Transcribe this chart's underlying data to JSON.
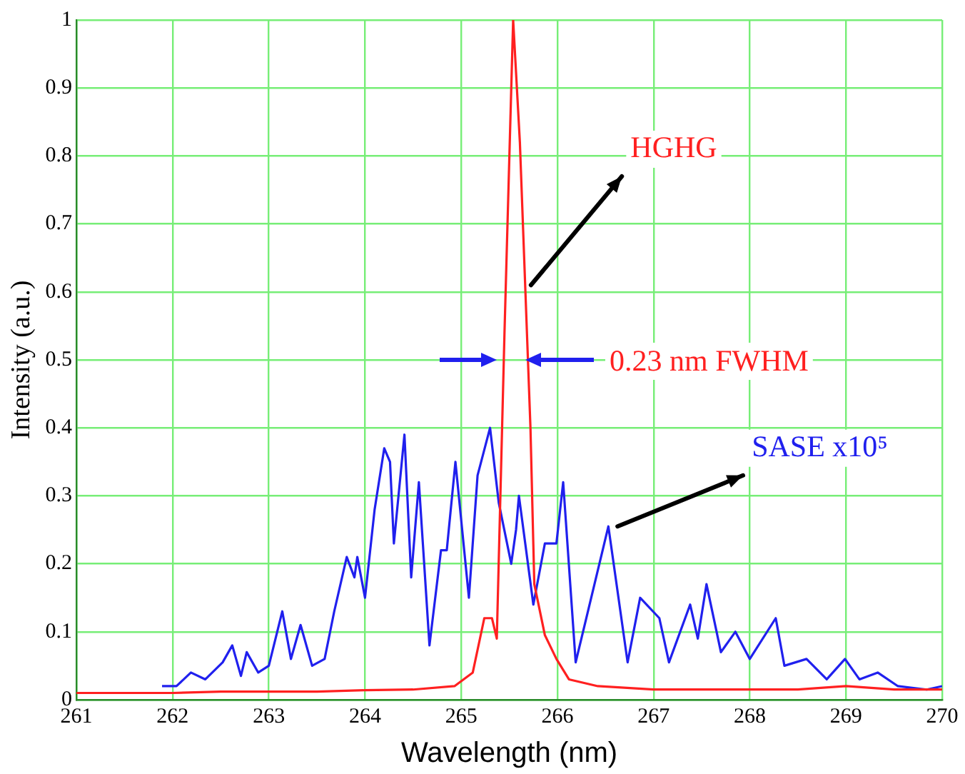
{
  "chart_data": {
    "type": "line",
    "xlabel": "Wavelength (nm)",
    "ylabel": "Intensity (a.u.)",
    "xlim": [
      261,
      270
    ],
    "xticks": [
      261,
      262,
      263,
      264,
      265,
      266,
      267,
      268,
      269,
      270
    ],
    "ylim": [
      0,
      1
    ],
    "yticks": [
      0,
      0.1,
      0.2,
      0.3,
      0.4,
      0.5,
      0.6,
      0.7,
      0.8,
      0.9,
      1
    ],
    "grid": true,
    "legend": false,
    "marker": "none",
    "line_style": "solid",
    "annotations": [
      "0.23 nm FWHM"
    ],
    "series": [
      {
        "name": "HGHG",
        "color": "#ff2020",
        "x": [
          261,
          261.5,
          262,
          262.5,
          263,
          263.5,
          264,
          264.5,
          264.93,
          265.12,
          265.24,
          265.32,
          265.37,
          265.45,
          265.54,
          265.61,
          265.72,
          265.76,
          265.87,
          265.99,
          266.12,
          266.42,
          267,
          267.5,
          268,
          268.5,
          269,
          269.5,
          270
        ],
        "values": [
          0.01,
          0.01,
          0.01,
          0.012,
          0.012,
          0.012,
          0.014,
          0.015,
          0.02,
          0.04,
          0.12,
          0.12,
          0.09,
          0.54,
          1.0,
          0.82,
          0.4,
          0.17,
          0.095,
          0.06,
          0.03,
          0.02,
          0.015,
          0.015,
          0.015,
          0.015,
          0.02,
          0.015,
          0.015
        ]
      },
      {
        "name": "SASE x10⁵",
        "color": "#2020ee",
        "x": [
          261.89,
          262.04,
          262.19,
          262.34,
          262.52,
          262.62,
          262.71,
          262.77,
          262.89,
          263.0,
          263.14,
          263.23,
          263.33,
          263.45,
          263.58,
          263.68,
          263.81,
          263.89,
          263.92,
          264.0,
          264.1,
          264.2,
          264.26,
          264.3,
          264.41,
          264.48,
          264.56,
          264.67,
          264.79,
          264.85,
          264.94,
          265.08,
          265.17,
          265.3,
          265.39,
          265.52,
          265.57,
          265.6,
          265.75,
          265.87,
          265.99,
          266.06,
          266.19,
          266.53,
          266.73,
          266.86,
          267.06,
          267.16,
          267.38,
          267.46,
          267.55,
          267.7,
          267.85,
          268.0,
          268.27,
          268.36,
          268.59,
          268.8,
          268.99,
          269.14,
          269.33,
          269.54,
          269.84,
          270
        ],
        "values": [
          0.02,
          0.02,
          0.04,
          0.03,
          0.055,
          0.08,
          0.035,
          0.07,
          0.04,
          0.05,
          0.13,
          0.06,
          0.11,
          0.05,
          0.06,
          0.13,
          0.21,
          0.18,
          0.21,
          0.15,
          0.28,
          0.37,
          0.35,
          0.23,
          0.39,
          0.18,
          0.32,
          0.08,
          0.22,
          0.22,
          0.35,
          0.15,
          0.33,
          0.4,
          0.29,
          0.2,
          0.25,
          0.3,
          0.14,
          0.23,
          0.23,
          0.32,
          0.055,
          0.255,
          0.055,
          0.15,
          0.12,
          0.055,
          0.14,
          0.09,
          0.17,
          0.07,
          0.1,
          0.06,
          0.12,
          0.05,
          0.06,
          0.03,
          0.06,
          0.03,
          0.04,
          0.02,
          0.015,
          0.02
        ]
      }
    ]
  }
}
